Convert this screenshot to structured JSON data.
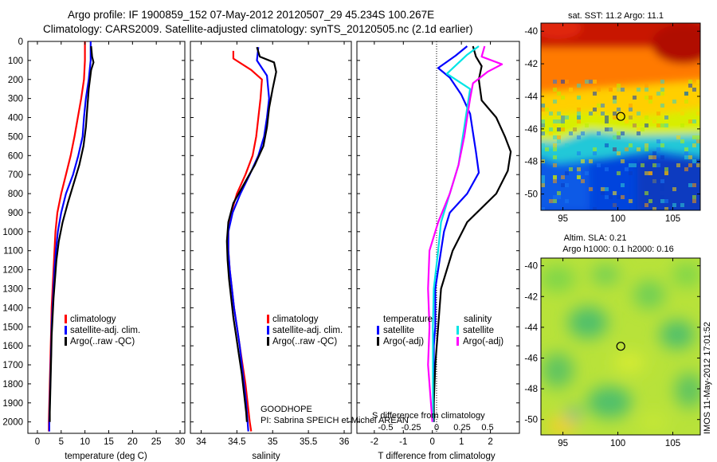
{
  "header": {
    "title_line1": "Argo profile: IF 1900859_152 07-May-2012 20120507_29 45.234S 100.267E",
    "title_line2": "Climatology: CARS2009. Satellite-adjusted climatology: synTS_20120505.nc (2.1d earlier)"
  },
  "annotations": {
    "goodhope": "GOODHOPE",
    "pi": "PI: Sabrina SPEICH et Michel AREAN",
    "watermark": "IMOS 11-May-2012 17:01:52"
  },
  "colors": {
    "climatology": "#ff0000",
    "satellite": "#0000ff",
    "argo": "#000000",
    "salinity_satellite": "#00e5e5",
    "salinity_argo": "#ff00ff",
    "zero_line": "#000000"
  },
  "chart_data": [
    {
      "id": "temperature",
      "type": "line",
      "xlabel": "temperature (deg C)",
      "ylabel": "",
      "xlim": [
        -2,
        31
      ],
      "ylim": [
        2060,
        0
      ],
      "xticks": [
        0,
        5,
        10,
        15,
        20,
        25,
        30
      ],
      "yticks": [
        0,
        100,
        200,
        300,
        400,
        500,
        600,
        700,
        800,
        900,
        1000,
        1100,
        1200,
        1300,
        1400,
        1500,
        1600,
        1700,
        1800,
        1900,
        2000
      ],
      "legend": [
        "climatology",
        "satellite-adj. clim.",
        "Argo(..raw -QC)"
      ],
      "legend_position": "lower-right",
      "series": [
        {
          "name": "climatology",
          "color": "#ff0000",
          "points": [
            [
              10.0,
              0
            ],
            [
              10.0,
              100
            ],
            [
              9.8,
              200
            ],
            [
              9.2,
              300
            ],
            [
              8.5,
              400
            ],
            [
              7.8,
              500
            ],
            [
              7.0,
              600
            ],
            [
              6.0,
              700
            ],
            [
              5.0,
              800
            ],
            [
              4.2,
              900
            ],
            [
              3.8,
              1000
            ],
            [
              3.6,
              1100
            ],
            [
              3.4,
              1200
            ],
            [
              3.2,
              1300
            ],
            [
              3.0,
              1400
            ],
            [
              2.9,
              1500
            ],
            [
              2.8,
              1600
            ],
            [
              2.7,
              1700
            ],
            [
              2.6,
              1800
            ],
            [
              2.5,
              1900
            ],
            [
              2.4,
              2000
            ],
            [
              2.4,
              2050
            ]
          ]
        },
        {
          "name": "satellite-adj. clim.",
          "color": "#0000ff",
          "points": [
            [
              11.2,
              0
            ],
            [
              11.2,
              100
            ],
            [
              10.8,
              200
            ],
            [
              10.2,
              300
            ],
            [
              9.8,
              400
            ],
            [
              9.5,
              500
            ],
            [
              8.6,
              600
            ],
            [
              7.5,
              700
            ],
            [
              6.0,
              800
            ],
            [
              5.0,
              900
            ],
            [
              4.3,
              1000
            ],
            [
              3.9,
              1100
            ],
            [
              3.6,
              1200
            ],
            [
              3.4,
              1300
            ],
            [
              3.2,
              1400
            ],
            [
              3.0,
              1500
            ],
            [
              2.9,
              1600
            ],
            [
              2.8,
              1700
            ],
            [
              2.7,
              1800
            ],
            [
              2.6,
              1900
            ],
            [
              2.5,
              2000
            ],
            [
              2.5,
              2050
            ]
          ]
        },
        {
          "name": "Argo(..raw -QC)",
          "color": "#000000",
          "points": [
            [
              11.3,
              25
            ],
            [
              11.5,
              80
            ],
            [
              11.8,
              110
            ],
            [
              11.3,
              150
            ],
            [
              10.8,
              250
            ],
            [
              10.5,
              350
            ],
            [
              10.2,
              450
            ],
            [
              9.7,
              550
            ],
            [
              8.8,
              650
            ],
            [
              7.6,
              750
            ],
            [
              6.4,
              850
            ],
            [
              5.3,
              950
            ],
            [
              4.5,
              1050
            ],
            [
              4.0,
              1150
            ],
            [
              3.7,
              1250
            ],
            [
              3.4,
              1350
            ],
            [
              3.2,
              1450
            ],
            [
              3.0,
              1550
            ],
            [
              2.9,
              1650
            ],
            [
              2.8,
              1750
            ],
            [
              2.7,
              1850
            ],
            [
              2.6,
              1950
            ],
            [
              2.6,
              2000
            ]
          ]
        }
      ]
    },
    {
      "id": "salinity",
      "type": "line",
      "xlabel": "salinity",
      "ylabel": "",
      "xlim": [
        33.85,
        36.1
      ],
      "ylim": [
        2060,
        0
      ],
      "xticks": [
        34,
        34.5,
        35,
        35.5,
        36
      ],
      "xticklabels": [
        "34",
        "34.5",
        "35",
        "35.5",
        "36"
      ],
      "legend": [
        "climatology",
        "satellite-adj. clim.",
        "Argo(..raw -QC)"
      ],
      "legend_position": "lower-right",
      "series": [
        {
          "name": "climatology",
          "color": "#ff0000",
          "points": [
            [
              34.45,
              50
            ],
            [
              34.45,
              90
            ],
            [
              34.7,
              150
            ],
            [
              34.85,
              200
            ],
            [
              34.83,
              300
            ],
            [
              34.8,
              400
            ],
            [
              34.77,
              500
            ],
            [
              34.72,
              600
            ],
            [
              34.62,
              700
            ],
            [
              34.5,
              800
            ],
            [
              34.42,
              900
            ],
            [
              34.38,
              1000
            ],
            [
              34.38,
              1100
            ],
            [
              34.4,
              1200
            ],
            [
              34.43,
              1300
            ],
            [
              34.46,
              1400
            ],
            [
              34.5,
              1500
            ],
            [
              34.54,
              1600
            ],
            [
              34.58,
              1700
            ],
            [
              34.62,
              1800
            ],
            [
              34.65,
              1900
            ],
            [
              34.68,
              2000
            ],
            [
              34.7,
              2050
            ]
          ]
        },
        {
          "name": "satellite-adj. clim.",
          "color": "#0000ff",
          "points": [
            [
              34.8,
              30
            ],
            [
              34.78,
              100
            ],
            [
              34.92,
              180
            ],
            [
              34.95,
              300
            ],
            [
              34.92,
              400
            ],
            [
              34.88,
              500
            ],
            [
              34.8,
              600
            ],
            [
              34.68,
              700
            ],
            [
              34.55,
              800
            ],
            [
              34.44,
              900
            ],
            [
              34.38,
              1000
            ],
            [
              34.38,
              1100
            ],
            [
              34.4,
              1200
            ],
            [
              34.43,
              1300
            ],
            [
              34.46,
              1400
            ],
            [
              34.5,
              1500
            ],
            [
              34.54,
              1600
            ],
            [
              34.57,
              1700
            ],
            [
              34.6,
              1800
            ],
            [
              34.63,
              1900
            ],
            [
              34.65,
              2000
            ],
            [
              34.66,
              2050
            ]
          ]
        },
        {
          "name": "Argo(..raw -QC)",
          "color": "#000000",
          "points": [
            [
              34.78,
              30
            ],
            [
              34.82,
              80
            ],
            [
              35.02,
              110
            ],
            [
              35.05,
              160
            ],
            [
              35.0,
              250
            ],
            [
              34.95,
              350
            ],
            [
              34.92,
              450
            ],
            [
              34.87,
              550
            ],
            [
              34.75,
              650
            ],
            [
              34.6,
              750
            ],
            [
              34.45,
              850
            ],
            [
              34.38,
              950
            ],
            [
              34.36,
              1050
            ],
            [
              34.37,
              1150
            ],
            [
              34.39,
              1250
            ],
            [
              34.42,
              1350
            ],
            [
              34.45,
              1450
            ],
            [
              34.49,
              1550
            ],
            [
              34.53,
              1650
            ],
            [
              34.57,
              1750
            ],
            [
              34.6,
              1850
            ],
            [
              34.63,
              1950
            ],
            [
              34.64,
              2000
            ]
          ]
        }
      ]
    },
    {
      "id": "differences",
      "type": "line",
      "xlabel": "T difference from climatology",
      "top_axis_label": "S difference from climatology",
      "xlim": [
        -2.6,
        3.0
      ],
      "ylim": [
        2060,
        0
      ],
      "xticks": [
        -2,
        -1,
        0,
        1,
        2
      ],
      "xticklabels": [
        "-2",
        "-1",
        "0",
        "1",
        "2"
      ],
      "sticks": [
        -0.5,
        -0.25,
        0,
        0.25,
        0.5
      ],
      "sticklabels": [
        "-0.5",
        "-0.25",
        "0",
        "0.25",
        "0.5"
      ],
      "legend_titles": [
        "temperature",
        "salinity"
      ],
      "legend_temperature": [
        "satellite",
        "Argo(-adj)"
      ],
      "legend_salinity": [
        "satellite",
        "Argo(-adj)"
      ],
      "legend_position": "lower-center",
      "series": [
        {
          "name": "temperature satellite",
          "color": "#0000ff",
          "points": [
            [
              1.2,
              25
            ],
            [
              0.8,
              75
            ],
            [
              0.2,
              140
            ],
            [
              0.6,
              190
            ],
            [
              1.0,
              280
            ],
            [
              1.3,
              380
            ],
            [
              1.4,
              480
            ],
            [
              1.5,
              580
            ],
            [
              1.6,
              690
            ],
            [
              1.2,
              800
            ],
            [
              0.6,
              900
            ],
            [
              0.4,
              1000
            ],
            [
              0.3,
              1100
            ],
            [
              0.2,
              1200
            ],
            [
              0.1,
              1300
            ],
            [
              0.1,
              1400
            ],
            [
              0.1,
              1500
            ],
            [
              0.05,
              1600
            ],
            [
              0.05,
              1700
            ],
            [
              0.05,
              1800
            ],
            [
              0.05,
              1900
            ],
            [
              0.05,
              2000
            ]
          ]
        },
        {
          "name": "temperature Argo(-adj)",
          "color": "#000000",
          "points": [
            [
              1.4,
              25
            ],
            [
              1.5,
              80
            ],
            [
              1.7,
              130
            ],
            [
              1.6,
              200
            ],
            [
              1.7,
              310
            ],
            [
              2.2,
              400
            ],
            [
              2.5,
              500
            ],
            [
              2.7,
              580
            ],
            [
              2.6,
              680
            ],
            [
              2.2,
              800
            ],
            [
              1.2,
              950
            ],
            [
              0.7,
              1100
            ],
            [
              0.3,
              1300
            ],
            [
              0.2,
              1500
            ],
            [
              0.1,
              1700
            ],
            [
              0.05,
              1900
            ],
            [
              0.05,
              2000
            ]
          ]
        },
        {
          "name": "salinity satellite",
          "color": "#00e5e5",
          "points": [
            [
              1.6,
              25
            ],
            [
              1.2,
              70
            ],
            [
              0.5,
              170
            ],
            [
              1.3,
              250
            ],
            [
              1.2,
              350
            ],
            [
              1.1,
              450
            ],
            [
              1.0,
              550
            ],
            [
              0.9,
              650
            ],
            [
              0.6,
              800
            ],
            [
              0.3,
              950
            ],
            [
              0.2,
              1100
            ],
            [
              0.05,
              1300
            ],
            [
              0.02,
              1500
            ],
            [
              0.02,
              1700
            ],
            [
              0.02,
              1900
            ],
            [
              0.02,
              2000
            ]
          ]
        },
        {
          "name": "salinity Argo(-adj)",
          "color": "#ff00ff",
          "points": [
            [
              1.8,
              25
            ],
            [
              1.7,
              80
            ],
            [
              2.4,
              120
            ],
            [
              1.9,
              160
            ],
            [
              1.4,
              220
            ],
            [
              1.3,
              300
            ],
            [
              1.2,
              400
            ],
            [
              1.1,
              500
            ],
            [
              0.9,
              650
            ],
            [
              0.6,
              800
            ],
            [
              0.2,
              950
            ],
            [
              -0.1,
              1100
            ],
            [
              -0.15,
              1300
            ],
            [
              -0.1,
              1500
            ],
            [
              -0.15,
              1700
            ],
            [
              -0.05,
              1900
            ],
            [
              0.0,
              2000
            ]
          ]
        }
      ]
    },
    {
      "id": "sst_map",
      "type": "heatmap",
      "title": "sat. SST: 11.2  Argo: 11.1",
      "xlim": [
        93,
        107.5
      ],
      "ylim": [
        -51,
        -39.5
      ],
      "xticks": [
        95,
        100,
        105
      ],
      "yticks": [
        -40,
        -42,
        -44,
        -46,
        -48,
        -50
      ],
      "marker": {
        "lon": 100.267,
        "lat": -45.234
      }
    },
    {
      "id": "sla_map",
      "type": "heatmap",
      "title_line1": "Altim. SLA: 0.21",
      "title_line2": "Argo h1000: 0.1  h2000: 0.16",
      "xlim": [
        93,
        107.5
      ],
      "ylim": [
        -51,
        -39.5
      ],
      "xticks": [
        95,
        100,
        105
      ],
      "yticks": [
        -40,
        -42,
        -44,
        -46,
        -48,
        -50
      ],
      "marker": {
        "lon": 100.267,
        "lat": -45.234
      }
    }
  ]
}
